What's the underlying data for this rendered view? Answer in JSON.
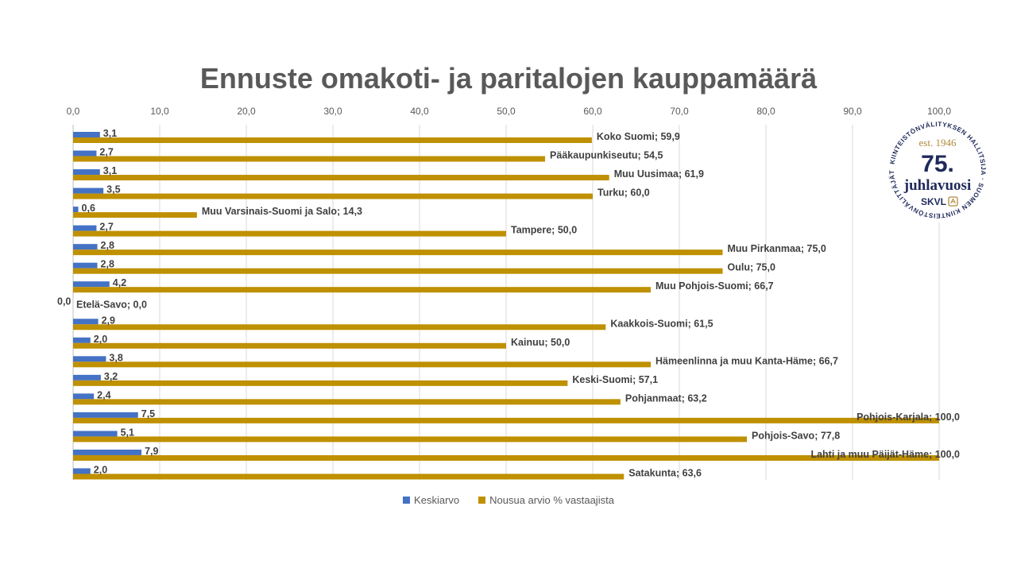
{
  "chart_data": {
    "type": "bar",
    "orientation": "horizontal",
    "title": "Ennuste omakoti- ja paritalojen kauppamäärä",
    "xlim": [
      0,
      100
    ],
    "x_ticks": [
      "0,0",
      "10,0",
      "20,0",
      "30,0",
      "40,0",
      "50,0",
      "60,0",
      "70,0",
      "80,0",
      "90,0",
      "100,0"
    ],
    "x_axis_position": "top",
    "grid": true,
    "legend_position": "bottom",
    "categories": [
      "Koko Suomi",
      "Pääkaupunkiseutu",
      "Muu Uusimaa",
      "Turku",
      "Muu Varsinais-Suomi ja Salo",
      "Tampere",
      "Muu Pirkanmaa",
      "Oulu",
      "Muu Pohjois-Suomi",
      "Etelä-Savo",
      "Kaakkois-Suomi",
      "Kainuu",
      "Hämeenlinna ja muu Kanta-Häme",
      "Keski-Suomi",
      "Pohjanmaat",
      "Pohjois-Karjala",
      "Pohjois-Savo",
      "Lahti ja muu Päijät-Häme",
      "Satakunta"
    ],
    "series": [
      {
        "name": "Keskiarvo",
        "color": "#4472C4",
        "values": [
          3.1,
          2.7,
          3.1,
          3.5,
          0.6,
          2.7,
          2.8,
          2.8,
          4.2,
          0.0,
          2.9,
          2.0,
          3.8,
          3.2,
          2.4,
          7.5,
          5.1,
          7.9,
          2.0
        ],
        "labels": [
          "3,1",
          "2,7",
          "3,1",
          "3,5",
          "0,6",
          "2,7",
          "2,8",
          "2,8",
          "4,2",
          "0,0",
          "2,9",
          "2,0",
          "3,8",
          "3,2",
          "2,4",
          "7,5",
          "5,1",
          "7,9",
          "2,0"
        ]
      },
      {
        "name": "Nousua arvio % vastaajista",
        "color": "#BF9000",
        "values": [
          59.9,
          54.5,
          61.9,
          60.0,
          14.3,
          50.0,
          75.0,
          75.0,
          66.7,
          0.0,
          61.5,
          50.0,
          66.7,
          57.1,
          63.2,
          100.0,
          77.8,
          100.0,
          63.6
        ],
        "labels": [
          "Koko Suomi; 59,9",
          "Pääkaupunkiseutu; 54,5",
          "Muu Uusimaa; 61,9",
          "Turku; 60,0",
          "Muu Varsinais-Suomi ja Salo; 14,3",
          "Tampere; 50,0",
          "Muu Pirkanmaa; 75,0",
          "Oulu; 75,0",
          "Muu Pohjois-Suomi; 66,7",
          "Etelä-Savo; 0,0",
          "Kaakkois-Suomi; 61,5",
          "Kainuu; 50,0",
          "Hämeenlinna ja muu Kanta-Häme; 66,7",
          "Keski-Suomi; 57,1",
          "Pohjanmaat; 63,2",
          "Pohjois-Karjala; 100,0",
          "Pohjois-Savo; 77,8",
          "Lahti ja muu Päijät-Häme; 100,0",
          "Satakunta; 63,6"
        ]
      }
    ]
  },
  "logo": {
    "ring_text": "KIINTEISTÖNVÄLITYKSEN HALLITSIJA · SUOMEN KIINTEISTÖNVÄLITTÄJÄT RY",
    "est": "est. 1946",
    "number": "75.",
    "word": "juhlavuosi",
    "brand": "SKVL",
    "navy": "#1F2A5A",
    "gold": "#B08A3E"
  }
}
